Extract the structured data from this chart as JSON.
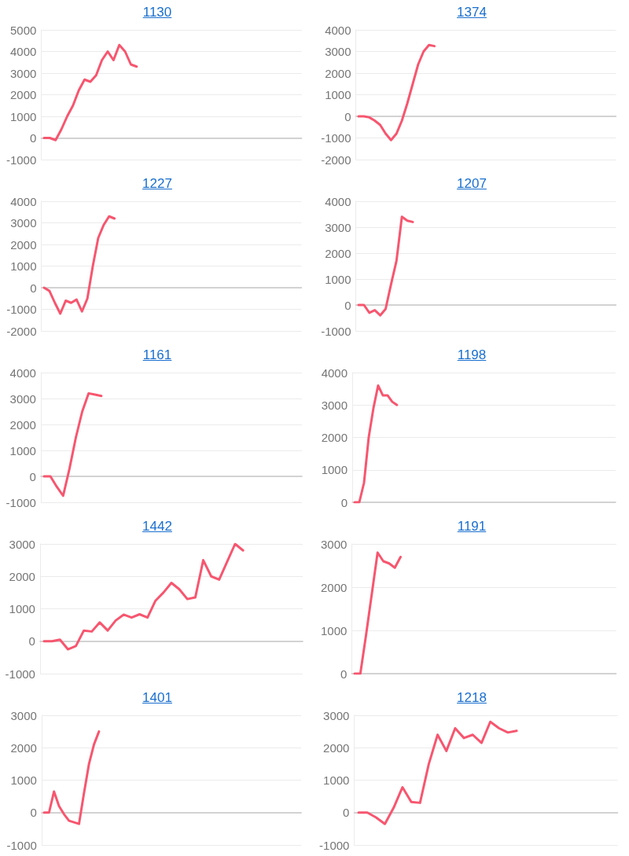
{
  "chart_data": [
    {
      "type": "line",
      "title": "1130",
      "color": "#f7566f",
      "grid": "y",
      "tick_labels": "y",
      "marker": "none",
      "ylim": [
        -1000,
        5000
      ],
      "yticks": [
        -1000,
        0,
        1000,
        2000,
        3000,
        4000,
        5000
      ],
      "categories": [
        null,
        null,
        null,
        null,
        null,
        null,
        null,
        null,
        null,
        null,
        null,
        null,
        null,
        null,
        null,
        null,
        null,
        null,
        null,
        null,
        null,
        null,
        null,
        null,
        null,
        null,
        null,
        null,
        null,
        null,
        null,
        null,
        null,
        null,
        null,
        null,
        null,
        null,
        null,
        null,
        null,
        null,
        null,
        null,
        null
      ],
      "values": [
        0,
        0,
        -100,
        400,
        1000,
        1500,
        2200,
        2700,
        2600,
        2900,
        3600,
        4000,
        3600,
        4300,
        4000,
        3400,
        3300,
        null,
        null,
        null,
        null,
        null,
        null,
        null,
        null,
        null,
        null,
        null,
        null,
        null,
        null,
        null,
        null,
        null,
        null,
        null,
        null,
        null,
        null,
        null,
        null,
        null,
        null,
        null,
        null
      ]
    },
    {
      "type": "line",
      "title": "1374",
      "color": "#f7566f",
      "grid": "y",
      "tick_labels": "y",
      "marker": "none",
      "ylim": [
        -2000,
        4000
      ],
      "yticks": [
        -2000,
        -1000,
        0,
        1000,
        2000,
        3000,
        4000
      ],
      "categories": [
        null,
        null,
        null,
        null,
        null,
        null,
        null,
        null,
        null,
        null,
        null,
        null,
        null,
        null,
        null,
        null,
        null,
        null,
        null,
        null,
        null,
        null,
        null,
        null,
        null,
        null,
        null,
        null,
        null,
        null,
        null,
        null,
        null,
        null,
        null,
        null,
        null,
        null,
        null,
        null,
        null,
        null,
        null,
        null,
        null,
        null,
        null,
        null
      ],
      "values": [
        0,
        0,
        -50,
        -200,
        -400,
        -800,
        -1100,
        -800,
        -200,
        600,
        1500,
        2400,
        3000,
        3300,
        3250,
        null,
        null,
        null,
        null,
        null,
        null,
        null,
        null,
        null,
        null,
        null,
        null,
        null,
        null,
        null,
        null,
        null,
        null,
        null,
        null,
        null,
        null,
        null,
        null,
        null,
        null,
        null,
        null,
        null,
        null,
        null,
        null,
        null
      ]
    },
    {
      "type": "line",
      "title": "1227",
      "color": "#f7566f",
      "grid": "y",
      "tick_labels": "y",
      "marker": "none",
      "ylim": [
        -2000,
        4000
      ],
      "yticks": [
        -2000,
        -1000,
        0,
        1000,
        2000,
        3000,
        4000
      ],
      "categories": [
        null,
        null,
        null,
        null,
        null,
        null,
        null,
        null,
        null,
        null,
        null,
        null,
        null,
        null,
        null,
        null,
        null,
        null,
        null,
        null,
        null,
        null,
        null,
        null,
        null,
        null,
        null,
        null,
        null,
        null,
        null,
        null,
        null,
        null,
        null,
        null,
        null,
        null,
        null,
        null,
        null,
        null,
        null,
        null,
        null,
        null,
        null,
        null
      ],
      "values": [
        0,
        -150,
        -700,
        -1200,
        -600,
        -700,
        -550,
        -1100,
        -500,
        1000,
        2300,
        2900,
        3300,
        3200,
        null,
        null,
        null,
        null,
        null,
        null,
        null,
        null,
        null,
        null,
        null,
        null,
        null,
        null,
        null,
        null,
        null,
        null,
        null,
        null,
        null,
        null,
        null,
        null,
        null,
        null,
        null,
        null,
        null,
        null,
        null,
        null,
        null,
        null
      ]
    },
    {
      "type": "line",
      "title": "1207",
      "color": "#f7566f",
      "grid": "y",
      "tick_labels": "y",
      "marker": "none",
      "ylim": [
        -1000,
        4000
      ],
      "yticks": [
        -1000,
        0,
        1000,
        2000,
        3000,
        4000
      ],
      "categories": [
        null,
        null,
        null,
        null,
        null,
        null,
        null,
        null,
        null,
        null,
        null,
        null,
        null,
        null,
        null,
        null,
        null,
        null,
        null,
        null,
        null,
        null,
        null,
        null,
        null,
        null,
        null,
        null,
        null,
        null,
        null,
        null,
        null,
        null,
        null,
        null,
        null,
        null,
        null,
        null,
        null,
        null,
        null,
        null,
        null,
        null,
        null,
        null
      ],
      "values": [
        0,
        0,
        -300,
        -200,
        -400,
        -150,
        800,
        1700,
        3400,
        3250,
        3200,
        null,
        null,
        null,
        null,
        null,
        null,
        null,
        null,
        null,
        null,
        null,
        null,
        null,
        null,
        null,
        null,
        null,
        null,
        null,
        null,
        null,
        null,
        null,
        null,
        null,
        null,
        null,
        null,
        null,
        null,
        null,
        null,
        null,
        null,
        null,
        null,
        null
      ]
    },
    {
      "type": "line",
      "title": "1161",
      "color": "#f7566f",
      "grid": "y",
      "tick_labels": "y",
      "marker": "none",
      "ylim": [
        -1000,
        4000
      ],
      "yticks": [
        -1000,
        0,
        1000,
        2000,
        3000,
        4000
      ],
      "categories": [
        null,
        null,
        null,
        null,
        null,
        null,
        null,
        null,
        null,
        null,
        null,
        null,
        null,
        null,
        null,
        null,
        null,
        null,
        null,
        null,
        null,
        null,
        null,
        null,
        null,
        null,
        null,
        null,
        null,
        null,
        null,
        null,
        null,
        null,
        null,
        null,
        null,
        null,
        null,
        null,
        null
      ],
      "values": [
        0,
        0,
        -400,
        -750,
        300,
        1500,
        2500,
        3200,
        3150,
        3100,
        null,
        null,
        null,
        null,
        null,
        null,
        null,
        null,
        null,
        null,
        null,
        null,
        null,
        null,
        null,
        null,
        null,
        null,
        null,
        null,
        null,
        null,
        null,
        null,
        null,
        null,
        null,
        null,
        null,
        null,
        null
      ]
    },
    {
      "type": "line",
      "title": "1198",
      "color": "#f7566f",
      "grid": "y",
      "tick_labels": "y",
      "marker": "none",
      "ylim": [
        0,
        4000
      ],
      "yticks": [
        0,
        1000,
        2000,
        3000,
        4000
      ],
      "categories": [
        null,
        null,
        null,
        null,
        null,
        null,
        null,
        null,
        null,
        null,
        null,
        null,
        null,
        null,
        null,
        null,
        null,
        null,
        null,
        null,
        null,
        null,
        null,
        null,
        null,
        null,
        null,
        null,
        null,
        null,
        null,
        null,
        null,
        null,
        null,
        null,
        null,
        null,
        null,
        null,
        null,
        null,
        null,
        null,
        null,
        null,
        null,
        null,
        null,
        null,
        null,
        null,
        null,
        null,
        null,
        null
      ],
      "values": [
        0,
        0,
        600,
        2000,
        2900,
        3600,
        3300,
        3300,
        3100,
        3000,
        null,
        null,
        null,
        null,
        null,
        null,
        null,
        null,
        null,
        null,
        null,
        null,
        null,
        null,
        null,
        null,
        null,
        null,
        null,
        null,
        null,
        null,
        null,
        null,
        null,
        null,
        null,
        null,
        null,
        null,
        null,
        null,
        null,
        null,
        null,
        null,
        null,
        null,
        null,
        null,
        null,
        null,
        null,
        null,
        null,
        null
      ]
    },
    {
      "type": "line",
      "title": "1442",
      "color": "#f7566f",
      "grid": "y",
      "tick_labels": "y",
      "marker": "none",
      "ylim": [
        -1000,
        3000
      ],
      "yticks": [
        -1000,
        0,
        1000,
        2000,
        3000
      ],
      "categories": [
        null,
        null,
        null,
        null,
        null,
        null,
        null,
        null,
        null,
        null,
        null,
        null,
        null,
        null,
        null,
        null,
        null,
        null,
        null,
        null,
        null,
        null,
        null,
        null,
        null,
        null,
        null,
        null,
        null,
        null,
        null,
        null,
        null
      ],
      "values": [
        0,
        0,
        50,
        -250,
        -150,
        330,
        300,
        580,
        330,
        640,
        820,
        730,
        830,
        730,
        1250,
        1500,
        1800,
        1600,
        1300,
        1350,
        2500,
        2000,
        1900,
        2450,
        3000,
        2800,
        null,
        null,
        null,
        null,
        null,
        null,
        null
      ]
    },
    {
      "type": "line",
      "title": "1191",
      "color": "#f7566f",
      "grid": "y",
      "tick_labels": "y",
      "marker": "none",
      "ylim": [
        0,
        3000
      ],
      "yticks": [
        0,
        1000,
        2000,
        3000
      ],
      "categories": [
        null,
        null,
        null,
        null,
        null,
        null,
        null,
        null,
        null,
        null,
        null,
        null,
        null,
        null,
        null,
        null,
        null,
        null,
        null,
        null,
        null,
        null,
        null,
        null,
        null,
        null,
        null,
        null,
        null,
        null,
        null,
        null,
        null,
        null,
        null,
        null,
        null,
        null,
        null,
        null,
        null,
        null,
        null,
        null,
        null,
        null
      ],
      "values": [
        0,
        0,
        900,
        1850,
        2800,
        2600,
        2550,
        2450,
        2700,
        null,
        null,
        null,
        null,
        null,
        null,
        null,
        null,
        null,
        null,
        null,
        null,
        null,
        null,
        null,
        null,
        null,
        null,
        null,
        null,
        null,
        null,
        null,
        null,
        null,
        null,
        null,
        null,
        null,
        null,
        null,
        null,
        null,
        null,
        null,
        null,
        null
      ]
    },
    {
      "type": "line",
      "title": "1401",
      "color": "#f7566f",
      "grid": "y",
      "tick_labels": "y",
      "marker": "none",
      "ylim": [
        -1000,
        3000
      ],
      "yticks": [
        -1000,
        0,
        1000,
        2000,
        3000
      ],
      "categories": [
        null,
        null,
        null,
        null,
        null,
        null,
        null,
        null,
        null,
        null,
        null,
        null,
        null,
        null,
        null,
        null,
        null,
        null,
        null,
        null,
        null,
        null,
        null,
        null,
        null,
        null,
        null,
        null,
        null,
        null,
        null,
        null,
        null,
        null,
        null,
        null,
        null,
        null,
        null,
        null,
        null,
        null,
        null,
        null,
        null,
        null,
        null,
        null,
        null,
        null,
        null,
        null
      ],
      "values": [
        0,
        0,
        650,
        200,
        -50,
        -250,
        -300,
        -350,
        600,
        1500,
        2100,
        2500,
        null,
        null,
        null,
        null,
        null,
        null,
        null,
        null,
        null,
        null,
        null,
        null,
        null,
        null,
        null,
        null,
        null,
        null,
        null,
        null,
        null,
        null,
        null,
        null,
        null,
        null,
        null,
        null,
        null,
        null,
        null,
        null,
        null,
        null,
        null,
        null,
        null,
        null,
        null,
        null
      ]
    },
    {
      "type": "line",
      "title": "1218",
      "color": "#f7566f",
      "grid": "y",
      "tick_labels": "y",
      "marker": "none",
      "ylim": [
        -1000,
        3000
      ],
      "yticks": [
        -1000,
        0,
        1000,
        2000,
        3000
      ],
      "categories": [
        null,
        null,
        null,
        null,
        null,
        null,
        null,
        null,
        null,
        null,
        null,
        null,
        null,
        null,
        null,
        null,
        null,
        null,
        null,
        null,
        null,
        null,
        null,
        null,
        null,
        null,
        null,
        null,
        null,
        null
      ],
      "values": [
        0,
        0,
        -150,
        -350,
        150,
        780,
        330,
        300,
        1500,
        2400,
        1900,
        2600,
        2300,
        2400,
        2150,
        2800,
        2600,
        2470,
        2520,
        null,
        null,
        null,
        null,
        null,
        null,
        null,
        null,
        null,
        null,
        null
      ]
    }
  ]
}
